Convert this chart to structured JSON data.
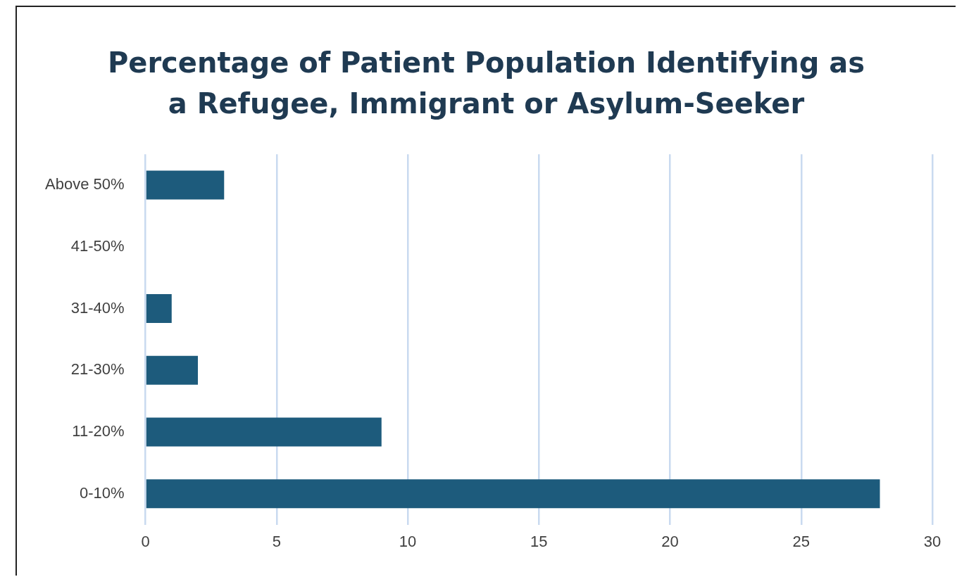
{
  "chart_data": {
    "type": "bar",
    "orientation": "horizontal",
    "title": "Percentage of Patient Population Identifying as a Refugee, Immigrant or Asylum-Seeker",
    "categories": [
      "Above 50%",
      "41-50%",
      "31-40%",
      "21-30%",
      "11-20%",
      "0-10%"
    ],
    "values": [
      3,
      0,
      1,
      2,
      9,
      28
    ],
    "color": "#1d5b7c",
    "xlim": [
      0,
      30
    ],
    "xticks": [
      0,
      5,
      10,
      15,
      20,
      25,
      30
    ],
    "grid": "x",
    "legend": false
  }
}
